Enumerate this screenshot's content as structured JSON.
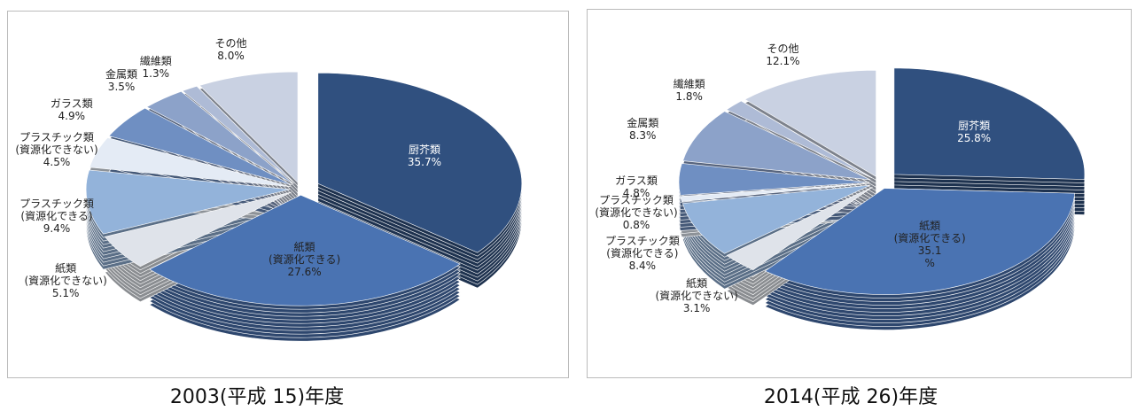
{
  "chart_data": [
    {
      "type": "pie",
      "title": "2003(平成 15)年度",
      "categories": [
        "厨芥類",
        "紙類\n(資源化できる)",
        "紙類\n(資源化できない)",
        "プラスチック類\n(資源化できる)",
        "プラスチック類\n(資源化できない)",
        "ガラス類",
        "金属類",
        "繊維類",
        "その他"
      ],
      "values": [
        35.7,
        27.6,
        5.1,
        9.4,
        4.5,
        4.9,
        3.5,
        1.3,
        8.0
      ],
      "value_labels": [
        "35.7%",
        "27.6%",
        "5.1%",
        "9.4%",
        "4.5%",
        "4.9%",
        "3.5%",
        "1.3%",
        "8.0%"
      ],
      "colors": [
        "#30507f",
        "#4a73b2",
        "#dfe3ea",
        "#93b3da",
        "#e4ebf5",
        "#6f8fc2",
        "#8ca2c9",
        "#aebbd6",
        "#c9d1e2"
      ]
    },
    {
      "type": "pie",
      "title": "2014(平成 26)年度",
      "categories": [
        "厨芥類",
        "紙類\n(資源化できる)",
        "紙類\n(資源化できない)",
        "プラスチック類\n(資源化できる)",
        "プラスチック類\n(資源化できない)",
        "ガラス類",
        "金属類",
        "繊維類",
        "その他"
      ],
      "values": [
        25.8,
        35.1,
        3.1,
        8.4,
        0.8,
        4.8,
        8.3,
        1.8,
        12.1
      ],
      "value_labels": [
        "25.8%",
        "35.1\n%",
        "3.1%",
        "8.4%",
        "0.8%",
        "4.8%",
        "8.3%",
        "1.8%",
        "12.1%"
      ],
      "colors": [
        "#30507f",
        "#4a73b2",
        "#dfe3ea",
        "#93b3da",
        "#e4ebf5",
        "#6f8fc2",
        "#8ca2c9",
        "#aebbd6",
        "#c9d1e2"
      ]
    }
  ]
}
